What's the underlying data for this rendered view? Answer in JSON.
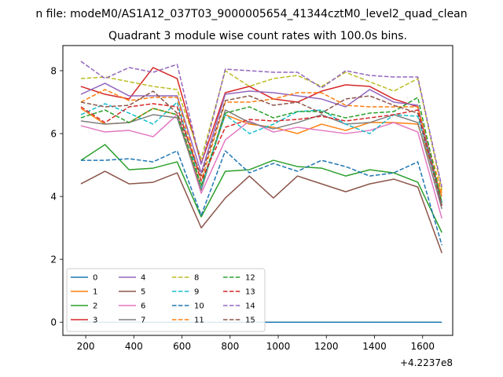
{
  "chart_data": {
    "type": "line",
    "suptitle": "n file: modeM0/AS1A12_037T03_9000005654_41344cztM0_level2_quad_clean",
    "title": "Quadrant 3 module wise count rates with 100.0s bins.",
    "xlabel": "",
    "ylabel": "",
    "x_offset_label": "+4.2237e8",
    "xlim": [
      105,
      1725
    ],
    "ylim": [
      -0.42,
      8.8
    ],
    "x_ticks": [
      200,
      400,
      600,
      800,
      1000,
      1200,
      1400,
      1600
    ],
    "x_tick_labels": [
      "200",
      "400",
      "600",
      "800",
      "1000",
      "1200",
      "1400",
      "1600"
    ],
    "y_ticks": [
      0,
      2,
      4,
      6,
      8
    ],
    "y_tick_labels": [
      "0",
      "2",
      "4",
      "6",
      "8"
    ],
    "grid": false,
    "legend_position": "lower-left",
    "x": [
      180,
      280,
      380,
      480,
      580,
      680,
      780,
      880,
      980,
      1080,
      1180,
      1280,
      1380,
      1480,
      1580,
      1680
    ],
    "series": [
      {
        "name": "0",
        "color": "#1f77b4",
        "dash": "solid",
        "values": [
          0,
          0,
          0,
          0,
          0,
          0,
          0,
          0,
          0,
          0,
          0,
          0,
          0,
          0,
          0,
          0
        ]
      },
      {
        "name": "1",
        "color": "#ff7f0e",
        "dash": "solid",
        "values": [
          6.8,
          6.3,
          6.35,
          6.8,
          6.6,
          4.3,
          6.6,
          6.3,
          6.2,
          6.0,
          6.3,
          6.1,
          6.35,
          6.35,
          6.3,
          4.0
        ]
      },
      {
        "name": "2",
        "color": "#2ca02c",
        "dash": "solid",
        "values": [
          5.15,
          5.65,
          4.85,
          4.9,
          5.1,
          3.35,
          4.8,
          4.85,
          5.15,
          4.95,
          4.9,
          4.65,
          4.85,
          4.75,
          4.45,
          2.85
        ]
      },
      {
        "name": "3",
        "color": "#d62728",
        "dash": "solid",
        "values": [
          7.5,
          7.25,
          7.1,
          8.1,
          7.75,
          5.05,
          7.3,
          7.5,
          7.1,
          7.0,
          7.35,
          7.55,
          7.5,
          7.1,
          6.85,
          3.8
        ]
      },
      {
        "name": "4",
        "color": "#9467bd",
        "dash": "solid",
        "values": [
          7.25,
          7.6,
          7.2,
          7.2,
          7.2,
          4.75,
          7.25,
          7.35,
          7.3,
          7.2,
          7.1,
          6.85,
          7.4,
          7.0,
          6.9,
          3.7
        ]
      },
      {
        "name": "5",
        "color": "#8c564b",
        "dash": "solid",
        "values": [
          4.4,
          4.8,
          4.4,
          4.45,
          4.75,
          3.0,
          3.95,
          4.65,
          3.95,
          4.65,
          4.4,
          4.15,
          4.4,
          4.55,
          4.3,
          2.2
        ]
      },
      {
        "name": "6",
        "color": "#e377c2",
        "dash": "solid",
        "values": [
          6.25,
          6.05,
          6.1,
          5.9,
          6.6,
          4.1,
          5.8,
          6.4,
          6.05,
          6.2,
          6.1,
          6.0,
          6.1,
          6.35,
          6.05,
          3.3
        ]
      },
      {
        "name": "7",
        "color": "#7f7f7f",
        "dash": "solid",
        "values": [
          6.4,
          6.3,
          6.35,
          6.6,
          6.5,
          4.2,
          6.75,
          6.35,
          6.15,
          6.35,
          6.6,
          6.3,
          6.35,
          6.6,
          6.35,
          3.6
        ]
      },
      {
        "name": "8",
        "color": "#bcbd22",
        "dash": "dashed",
        "values": [
          7.75,
          7.8,
          7.65,
          7.5,
          7.4,
          5.2,
          8.0,
          7.5,
          7.75,
          7.85,
          7.5,
          7.95,
          7.65,
          7.35,
          7.75,
          4.2
        ]
      },
      {
        "name": "9",
        "color": "#17becf",
        "dash": "dashed",
        "values": [
          6.6,
          6.95,
          6.65,
          6.3,
          7.0,
          4.3,
          6.6,
          6.0,
          6.3,
          6.7,
          6.75,
          6.3,
          6.0,
          6.6,
          6.55,
          3.8
        ]
      },
      {
        "name": "10",
        "color": "#1f77b4",
        "dash": "dashed",
        "values": [
          5.15,
          5.15,
          5.2,
          5.1,
          5.45,
          3.4,
          5.45,
          4.75,
          5.05,
          4.8,
          5.15,
          4.95,
          4.65,
          4.75,
          5.1,
          2.45
        ]
      },
      {
        "name": "11",
        "color": "#ff7f0e",
        "dash": "dashed",
        "values": [
          7.0,
          7.4,
          7.05,
          7.15,
          7.15,
          4.5,
          7.0,
          7.0,
          7.1,
          7.3,
          7.3,
          6.9,
          6.85,
          6.85,
          6.85,
          4.1
        ]
      },
      {
        "name": "12",
        "color": "#2ca02c",
        "dash": "dashed",
        "values": [
          6.5,
          6.75,
          6.35,
          6.8,
          6.6,
          4.35,
          6.65,
          6.85,
          6.5,
          6.7,
          6.7,
          6.5,
          6.65,
          6.7,
          7.15,
          3.8
        ]
      },
      {
        "name": "13",
        "color": "#d62728",
        "dash": "dashed",
        "values": [
          6.85,
          6.35,
          6.85,
          6.95,
          6.85,
          4.5,
          6.2,
          6.45,
          6.4,
          6.45,
          6.55,
          6.4,
          6.5,
          6.6,
          6.75,
          3.7
        ]
      },
      {
        "name": "14",
        "color": "#9467bd",
        "dash": "dashed",
        "values": [
          8.3,
          7.75,
          8.1,
          7.95,
          8.2,
          5.0,
          8.05,
          8.0,
          7.95,
          7.95,
          7.45,
          8.0,
          7.85,
          7.8,
          7.8,
          4.3
        ]
      },
      {
        "name": "15",
        "color": "#8c564b",
        "dash": "dashed",
        "values": [
          7.0,
          6.85,
          6.9,
          7.35,
          6.65,
          4.65,
          7.05,
          7.2,
          6.9,
          7.0,
          6.65,
          7.1,
          7.2,
          6.9,
          6.65,
          3.7
        ]
      }
    ]
  }
}
